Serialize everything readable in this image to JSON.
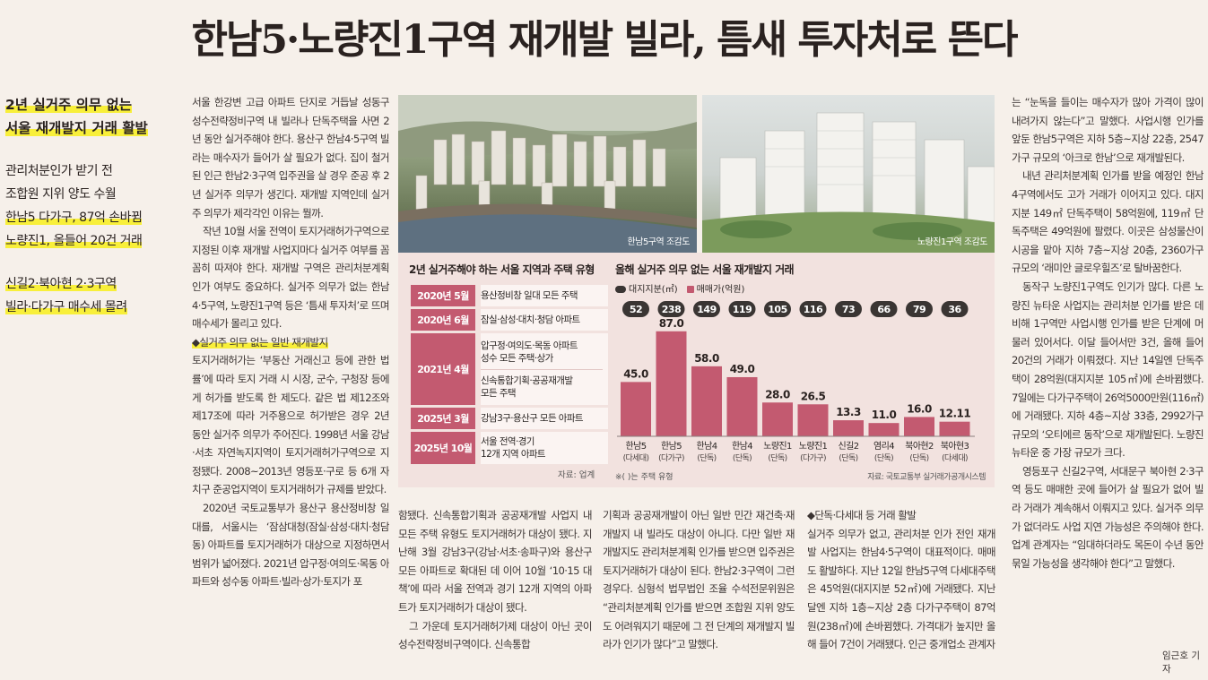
{
  "headline": "한남5·노량진1구역 재개발 빌라, 틈새 투자처로 뜬다",
  "side": {
    "kicker": [
      "2년 실거주 의무 없는",
      "서울 재개발지 거래 활발"
    ],
    "sub1": [
      "관리처분인가 받기 전",
      "조합원 지위 양도 수월",
      "한남5 다가구, 87억 손바뀜",
      "노량진1, 올들어 20건 거래"
    ],
    "sub2": [
      "신길2·북아현 2·3구역",
      "빌라·다가구 매수세 몰려"
    ]
  },
  "col1": [
    "서울 한강변 고급 아파트 단지로 거듭날 성동구 성수전략정비구역 내 빌라나 단독주택을 사면 2년 동안 실거주해야 한다. 용산구 한남4·5구역 빌라는 매수자가 들어가 살 필요가 없다. 집이 철거된 인근 한남2·3구역 입주권을 살 경우 준공 후 2년 실거주 의무가 생긴다. 재개발 지역인데 실거주 의무가 제각각인 이유는 뭘까.",
    "작년 10월 서울 전역이 토지거래허가구역으로 지정된 이후 재개발 사업지마다 실거주 여부를 꼼꼼히 따져야 한다. 재개발 구역은 관리처분계획 인가 여부도 중요하다. 실거주 의무가 없는 한남4·5구역, 노량진1구역 등은 ‘틈새 투자처’로 뜨며 매수세가 몰리고 있다.",
    "◆실거주 의무 없는 일반 재개발지",
    "토지거래허가는 ‘부동산 거래신고 등에 관한 법률’에 따라 토지 거래 시 시장, 군수, 구청장 등에게 허가를 받도록 한 제도다. 같은 법 제12조와 제17조에 따라 거주용으로 허가받은 경우 2년 동안 실거주 의무가 주어진다. 1998년 서울 강남·서초 자연녹지지역이 토지거래허가구역으로 지정됐다. 2008~2013년 영등포·구로 등 6개 자치구 준공업지역이 토지거래허가 규제를 받았다.",
    "2020년 국토교통부가 용산구 용산정비창 일대를, 서울시는 ‘잠삼대청(잠실·삼성·대치·청담동) 아파트를 토지거래허가 대상으로 지정하면서 범위가 넓어졌다. 2021년 압구정·여의도·목동 아파트와 성수동 아파트·빌라·상가·토지가 포"
  ],
  "col2": [
    "함됐다. 신속통합기획과 공공재개발 사업지 내 모든 주택 유형도 토지거래허가 대상이 됐다. 지난해 3월 강남3구(강남·서초·송파구)와 용산구 모든 아파트로 확대된 데 이어 10월 ‘10·15 대책’에 따라 서울 전역과 경기 12개 지역의 아파트가 토지거래허가 대상이 됐다.",
    "그 가운데 토지거래허가제 대상이 아닌 곳이 성수전략정비구역이다. 신속통합"
  ],
  "col3": [
    "기획과 공공재개발이 아닌 일반 민간 재건축·재개발지 내 빌라도 대상이 아니다. 다만 일반 재개발지도 관리처분계획 인가를 받으면 입주권은 토지거래허가 대상이 된다. 한남2·3구역이 그런 경우다. 심형석 법무법인 조율 수석전문위원은 “관리처분계획 인가를 받으면 조합원 지위 양도도 어려워지기 때문에 그 전 단계의 재개발지 빌라가 인기가 많다”고 말했다."
  ],
  "col4": [
    "◆단독·다세대 등 거래 활발",
    "실거주 의무가 없고, 관리처분 인가 전인 재개발 사업지는 한남4·5구역이 대표적이다. 매매도 활발하다. 지난 12일 한남5구역 다세대주택은 45억원(대지지분 52㎡)에 거래됐다. 지난달엔 지하 1층~지상 2층 다가구주택이 87억원(238㎡)에 손바뀜했다. 가격대가 높지만 올해 들어 7건이 거래됐다. 인근 중개업소 관계자"
  ],
  "col5": [
    "는 “눈독을 들이는 매수자가 많아 가격이 많이 내려가지 않는다”고 말했다. 사업시행 인가를 앞둔 한남5구역은 지하 5층~지상 22층, 2547가구 규모의 ‘아크로 한남’으로 재개발된다.",
    "내년 관리처분계획 인가를 받을 예정인 한남4구역에서도 고가 거래가 이어지고 있다. 대지지분 149㎡ 단독주택이 58억원에, 119㎡ 단독주택은 49억원에 팔렸다. 이곳은 삼성물산이 시공을 맡아 지하 7층~지상 20층, 2360가구 규모의 ‘래미안 글로우힐즈’로 탈바꿈한다.",
    "동작구 노량진1구역도 인기가 많다. 다른 노량진 뉴타운 사업지는 관리처분 인가를 받은 데 비해 1구역만 사업시행 인가를 받은 단계에 머물러 있어서다. 이달 들어서만 3건, 올해 들어 20건의 거래가 이뤄졌다. 지난 14일엔 단독주택이 28억원(대지지분 105㎡)에 손바뀜했다. 7일에는 다가구주택이 26억5000만원(116㎡)에 거래됐다. 지하 4층~지상 33층, 2992가구 규모의 ‘오티에르 동작’으로 재개발된다. 노량진뉴타운 중 가장 규모가 크다.",
    "영등포구 신길2구역, 서대문구 북아현 2·3구역 등도 매매한 곳에 들어가 살 필요가 없어 빌라 거래가 계속해서 이뤄지고 있다. 실거주 의무가 없더라도 사업 지연 가능성은 주의해야 한다. 업계 관계자는 “임대하더라도 목돈이 수년 동안 묶일 가능성을 생각해야 한다”고 말했다."
  ],
  "byline": "임근호 기자",
  "photos": {
    "left_caption": "한남5구역 조감도",
    "right_caption": "노량진1구역 조감도"
  },
  "table": {
    "title": "2년 실거주해야 하는 서울 지역과 주택 유형",
    "rows": [
      {
        "year": "2020년 5월",
        "content": [
          "용산정비창 일대 모든 주택"
        ]
      },
      {
        "year": "2020년 6월",
        "content": [
          "잠실·삼성·대치·청담 아파트"
        ]
      },
      {
        "year": "2021년 4월",
        "content": [
          "압구정·여의도·목동 아파트",
          "성수 모든 주택·상가",
          "",
          "신속통합기획·공공재개발",
          "모든 주택"
        ]
      },
      {
        "year": "2025년 3월",
        "content": [
          "강남3구·용산구 모든 아파트"
        ]
      },
      {
        "year": "2025년 10월",
        "content": [
          "서울 전역·경기",
          "12개 지역 아파트"
        ]
      }
    ],
    "source": "자료: 업계"
  },
  "chart_data": {
    "type": "bar",
    "title": "올해 실거주 의무 없는 서울 재개발지 거래",
    "legend": [
      "대지지분(㎡)",
      "매매가(억원)"
    ],
    "categories": [
      "한남5",
      "한남5",
      "한남4",
      "한남4",
      "노량진1",
      "노량진1",
      "신길2",
      "염리4",
      "북아현2",
      "북아현3"
    ],
    "types": [
      "(다세대)",
      "(다가구)",
      "(단독)",
      "(단독)",
      "(단독)",
      "(다가구)",
      "(단독)",
      "(단독)",
      "(단독)",
      "(다세대)"
    ],
    "land_share": [
      52,
      238,
      149,
      119,
      105,
      116,
      73,
      66,
      79,
      36
    ],
    "values": [
      45.0,
      87.0,
      58.0,
      49.0,
      28.0,
      26.5,
      13.3,
      11.0,
      16.0,
      12.11
    ],
    "value_labels": [
      "45.0",
      "87.0",
      "58.0",
      "49.0",
      "28.0",
      "26.5",
      "13.3",
      "11.0",
      "16.0",
      "12.11"
    ],
    "ylim": [
      0,
      95
    ],
    "note": "※( )는 주택 유형",
    "source": "자료: 국토교통부 실거래가공개시스템",
    "colors": {
      "bar": "#c35a70",
      "pill": "#3a3533",
      "accent": "#c35a70"
    }
  }
}
